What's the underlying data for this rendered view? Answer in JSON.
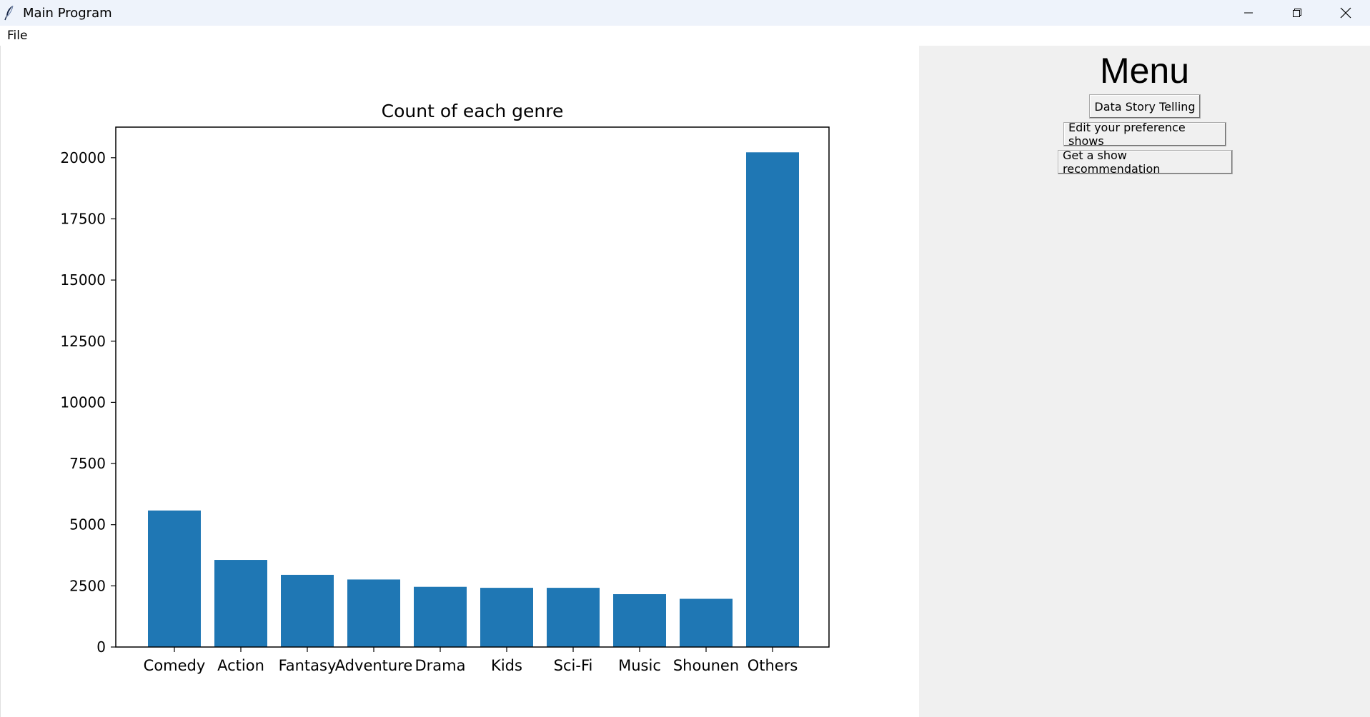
{
  "window": {
    "title": "Main Program",
    "controls": {
      "minimize": "minimize-icon",
      "restore": "restore-icon",
      "close": "close-icon"
    }
  },
  "menubar": {
    "file": "File"
  },
  "side_menu": {
    "title": "Menu",
    "buttons": {
      "data_story": "Data Story Telling",
      "edit_preference": "Edit your preference shows",
      "recommendation": "Get a show recommendation"
    }
  },
  "colors": {
    "bar": "#1f77b4",
    "panel": "#f0f0f0"
  },
  "chart_data": {
    "type": "bar",
    "title": "Count of each genre",
    "xlabel": "",
    "ylabel": "",
    "categories": [
      "Comedy",
      "Action",
      "Fantasy",
      "Adventure",
      "Drama",
      "Kids",
      "Sci-Fi",
      "Music",
      "Shounen",
      "Others"
    ],
    "values": [
      5580,
      3560,
      2950,
      2760,
      2460,
      2420,
      2420,
      2160,
      1970,
      20220
    ],
    "ylim": [
      0,
      21250
    ],
    "yticks": [
      0,
      2500,
      5000,
      7500,
      10000,
      12500,
      15000,
      17500,
      20000
    ],
    "grid": false,
    "legend": "none"
  }
}
